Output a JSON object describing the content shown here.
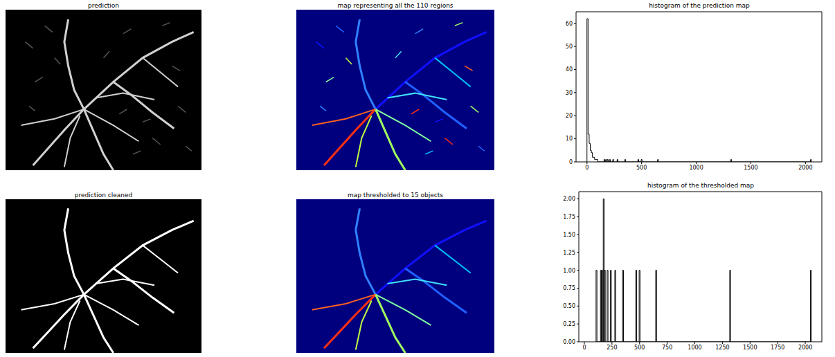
{
  "images": [
    {
      "title": "prediction"
    },
    {
      "title": "map representing all the 110 regions"
    },
    {
      "title": "prediction cleaned"
    },
    {
      "title": "map thresholded to 15 objects"
    }
  ],
  "chart_data": [
    {
      "type": "histogram",
      "title": "histogram of the prediction map",
      "color": "#000000",
      "bins": [
        0,
        10,
        20,
        30,
        40,
        50,
        60,
        70,
        80,
        90,
        100,
        156,
        164,
        171,
        179,
        186,
        194,
        206,
        214,
        236,
        244,
        276,
        284,
        346,
        354,
        466,
        474,
        496,
        504,
        646,
        654,
        1316,
        1324,
        2046,
        2054
      ],
      "counts": [
        62,
        12,
        8,
        5,
        4,
        2,
        2,
        1,
        1,
        1,
        0,
        1,
        0,
        1,
        0,
        1,
        0,
        1,
        0,
        1,
        0,
        1,
        0,
        1,
        0,
        1,
        0,
        1,
        0,
        1,
        0,
        1,
        0,
        1
      ],
      "xlim": [
        -100,
        2150
      ],
      "xticks": [
        0,
        500,
        1000,
        1500,
        2000
      ],
      "ylim": [
        0,
        65
      ],
      "yticks": [
        0,
        10,
        20,
        30,
        40,
        50,
        60
      ]
    },
    {
      "type": "histogram",
      "title": "histogram of  the thresholded map",
      "color": "#000000",
      "bins": [
        106,
        114,
        146,
        154,
        161,
        169,
        171,
        179,
        181,
        189,
        206,
        214,
        236,
        244,
        276,
        284,
        346,
        354,
        466,
        474,
        496,
        504,
        646,
        654,
        1316,
        1324,
        2046,
        2054
      ],
      "counts": [
        1,
        0,
        1,
        0,
        1,
        0,
        2,
        0,
        1,
        0,
        1,
        0,
        1,
        0,
        1,
        0,
        1,
        0,
        1,
        0,
        1,
        0,
        1,
        0,
        1,
        0,
        1
      ],
      "xlim": [
        -50,
        2150
      ],
      "xticks": [
        0,
        250,
        500,
        750,
        1000,
        1250,
        1500,
        1750,
        2000
      ],
      "ylim": [
        0,
        2.1
      ],
      "yticks": [
        {
          "value": 0,
          "label": "0.00"
        },
        {
          "value": 0.25,
          "label": "0.25"
        },
        {
          "value": 0.5,
          "label": "0.50"
        },
        {
          "value": 0.75,
          "label": "0.75"
        },
        {
          "value": 1,
          "label": "1.00"
        },
        {
          "value": 1.25,
          "label": "1.25"
        },
        {
          "value": 1.5,
          "label": "1.50"
        },
        {
          "value": 1.75,
          "label": "1.75"
        },
        {
          "value": 2,
          "label": "2.00"
        }
      ]
    }
  ]
}
